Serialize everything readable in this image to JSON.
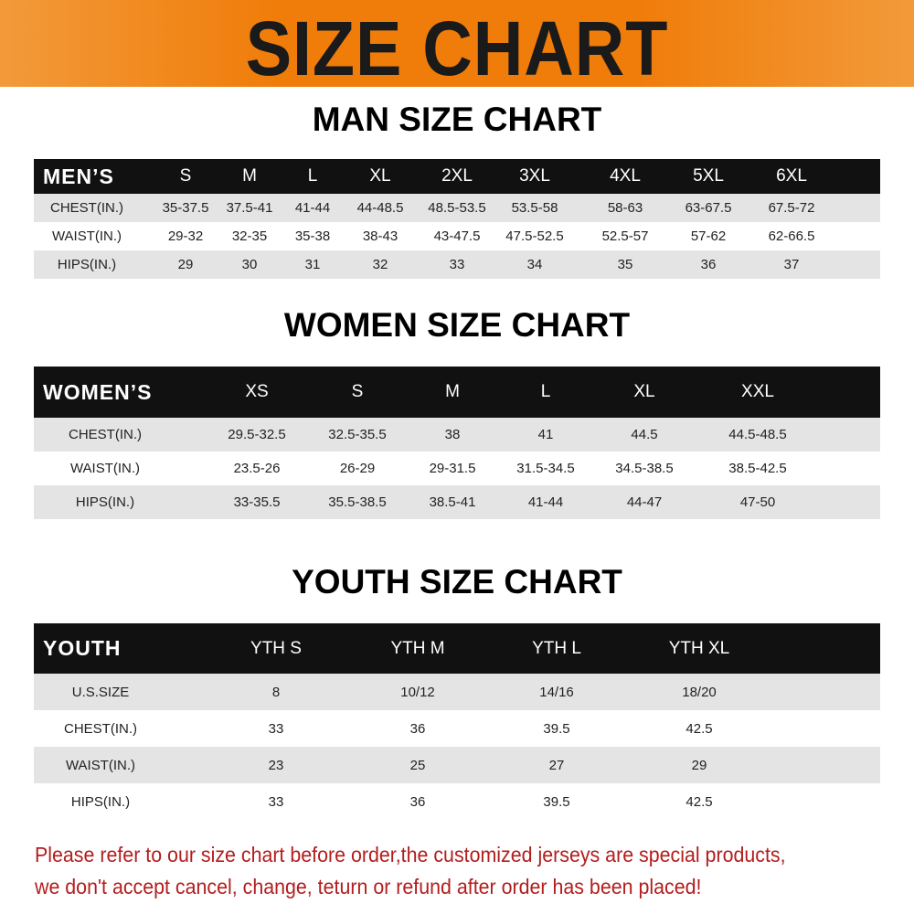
{
  "banner": {
    "title": "SIZE CHART",
    "color": "#f07d0a"
  },
  "men": {
    "title": "MAN SIZE CHART",
    "header": [
      "MEN’S",
      "S",
      "M",
      "L",
      "XL",
      "2XL",
      "3XL",
      "4XL",
      "5XL",
      "6XL"
    ],
    "rows": [
      [
        "CHEST(IN.)",
        "35-37.5",
        "37.5-41",
        "41-44",
        "44-48.5",
        "48.5-53.5",
        "53.5-58",
        "58-63",
        "63-67.5",
        "67.5-72"
      ],
      [
        "WAIST(IN.)",
        "29-32",
        "32-35",
        "35-38",
        "38-43",
        "43-47.5",
        "47.5-52.5",
        "52.5-57",
        "57-62",
        "62-66.5"
      ],
      [
        "HIPS(IN.)",
        "29",
        "30",
        "31",
        "32",
        "33",
        "34",
        "35",
        "36",
        "37"
      ]
    ]
  },
  "women": {
    "title": "WOMEN SIZE CHART",
    "header": [
      "WOMEN’S",
      "XS",
      "S",
      "M",
      "L",
      "XL",
      "XXL"
    ],
    "rows": [
      [
        "CHEST(IN.)",
        "29.5-32.5",
        "32.5-35.5",
        "38",
        "41",
        "44.5",
        "44.5-48.5"
      ],
      [
        "WAIST(IN.)",
        "23.5-26",
        "26-29",
        "29-31.5",
        "31.5-34.5",
        "34.5-38.5",
        "38.5-42.5"
      ],
      [
        "HIPS(IN.)",
        "33-35.5",
        "35.5-38.5",
        "38.5-41",
        "41-44",
        "44-47",
        "47-50"
      ]
    ]
  },
  "youth": {
    "title": "YOUTH SIZE CHART",
    "header": [
      "YOUTH",
      "YTH S",
      "YTH M",
      "YTH L",
      "YTH XL"
    ],
    "rows": [
      [
        "U.S.SIZE",
        "8",
        "10/12",
        "14/16",
        "18/20"
      ],
      [
        "CHEST(IN.)",
        "33",
        "36",
        "39.5",
        "42.5"
      ],
      [
        "WAIST(IN.)",
        "23",
        "25",
        "27",
        "29"
      ],
      [
        "HIPS(IN.)",
        "33",
        "36",
        "39.5",
        "42.5"
      ]
    ]
  },
  "notice": {
    "line1": "Please refer to our size chart before order,the customized jerseys are special products,",
    "line2": "we don't accept cancel, change, teturn or refund after order has been placed!",
    "color": "#b31d1d"
  }
}
